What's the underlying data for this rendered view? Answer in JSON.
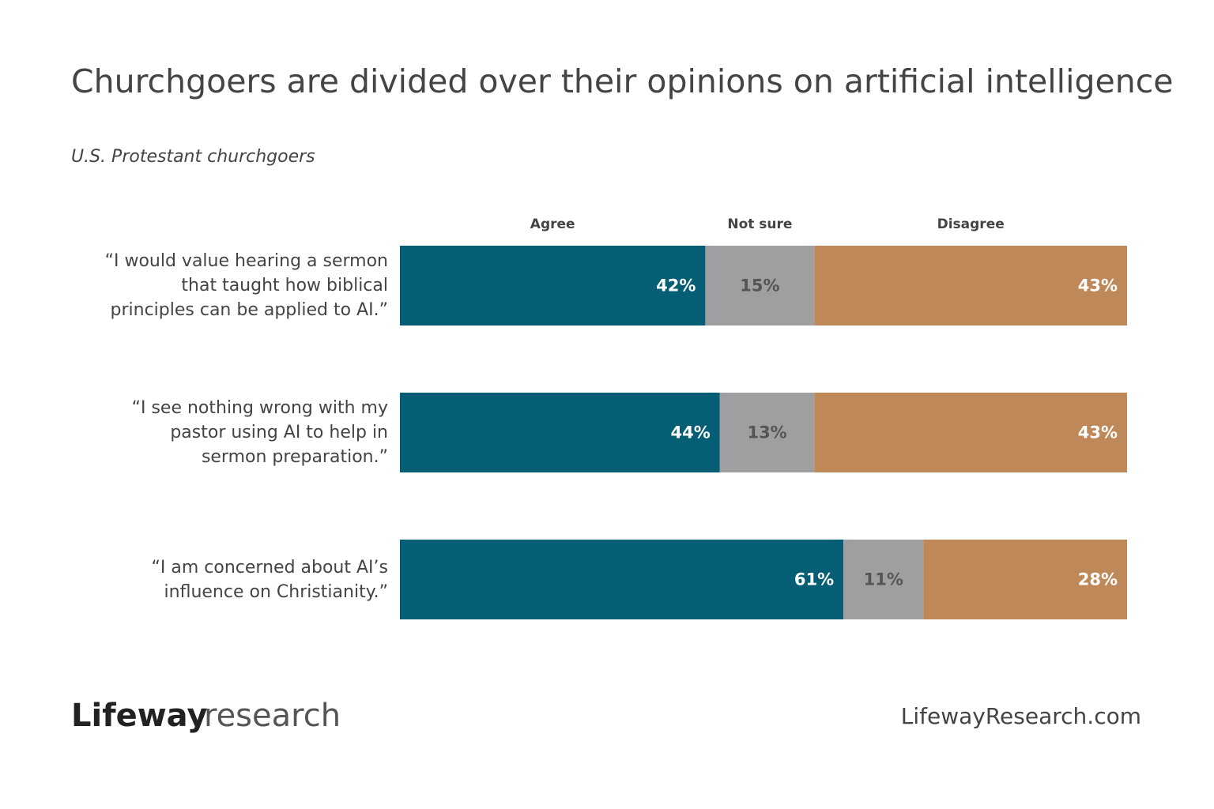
{
  "chart_data": {
    "type": "stacked-bar-horizontal",
    "title": "Churchgoers are divided over their opinions on artificial intelligence",
    "subtitle": "U.S. Protestant churchgoers",
    "categories": [
      "“I would value hearing a sermon\nthat taught how biblical\nprinciples can be applied to AI.”",
      "“I see nothing wrong with my\npastor using AI to help in\nsermon preparation.”",
      "“I am concerned about AI’s\ninfluence on Christianity.”"
    ],
    "series": [
      {
        "name": "Agree",
        "color": "#055e73",
        "values": [
          42,
          44,
          61
        ],
        "value_labels": [
          "42%",
          "44%",
          "61%"
        ]
      },
      {
        "name": "Not sure",
        "color": "#a09ea0",
        "values": [
          15,
          13,
          11
        ],
        "value_labels": [
          "15%",
          "13%",
          "11%"
        ]
      },
      {
        "name": "Disagree",
        "color": "#bf8858",
        "values": [
          43,
          43,
          28
        ],
        "value_labels": [
          "43%",
          "43%",
          "28%"
        ]
      }
    ],
    "logo_brand": "Lifeway",
    "logo_sub": "research",
    "source": "LifewayResearch.com"
  }
}
